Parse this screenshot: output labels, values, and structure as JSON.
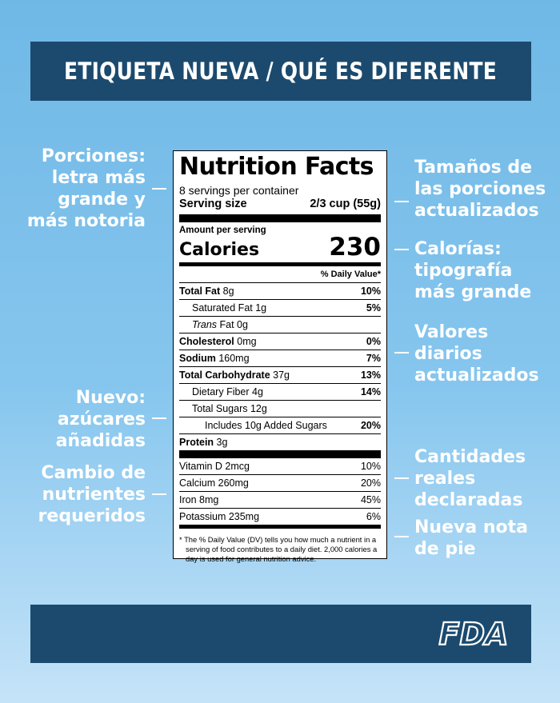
{
  "header": {
    "title": "ETIQUETA NUEVA / QUÉ ES DIFERENTE"
  },
  "callouts": {
    "left": [
      [
        "Porciones:",
        "letra más",
        "grande y",
        "más notoria"
      ],
      [
        "Nuevo:",
        "azúcares",
        "añadidas"
      ],
      [
        "Cambio de",
        "nutrientes",
        "requeridos"
      ]
    ],
    "right": [
      [
        "Tamaños de",
        "las porciones",
        "actualizados"
      ],
      [
        "Calorías:",
        "tipografía",
        "más grande"
      ],
      [
        "Valores",
        "diarios",
        "actualizados"
      ],
      [
        "Cantidades",
        "reales",
        "declaradas"
      ],
      [
        "Nueva nota",
        "de pie"
      ]
    ]
  },
  "label": {
    "title": "Nutrition Facts",
    "servings": "8 servings per container",
    "serving_size_label": "Serving size",
    "serving_size_value": "2/3 cup (55g)",
    "amount_per_serving": "Amount per serving",
    "calories_label": "Calories",
    "calories_value": "230",
    "daily_value_header": "% Daily Value*",
    "nutrients": [
      {
        "name": "Total Fat",
        "amount": "8g",
        "pct": "10%"
      },
      {
        "name": "Saturated Fat",
        "amount": "1g",
        "pct": "5%"
      },
      {
        "name": "Trans",
        "amount": "Fat 0g",
        "pct": ""
      },
      {
        "name": "Cholesterol",
        "amount": "0mg",
        "pct": "0%"
      },
      {
        "name": "Sodium",
        "amount": "160mg",
        "pct": "7%"
      },
      {
        "name": "Total Carbohydrate",
        "amount": "37g",
        "pct": "13%"
      },
      {
        "name": "Dietary Fiber",
        "amount": "4g",
        "pct": "14%"
      },
      {
        "name": "Total Sugars",
        "amount": "12g",
        "pct": ""
      },
      {
        "name": "Includes 10g Added Sugars",
        "amount": "",
        "pct": "20%"
      },
      {
        "name": "Protein",
        "amount": "3g",
        "pct": ""
      }
    ],
    "vitamins": [
      {
        "name": "Vitamin D 2mcg",
        "pct": "10%"
      },
      {
        "name": "Calcium 260mg",
        "pct": "20%"
      },
      {
        "name": "Iron 8mg",
        "pct": "45%"
      },
      {
        "name": "Potassium 235mg",
        "pct": "6%"
      }
    ],
    "footnote": "* The % Daily Value (DV) tells you how much a nutrient in a serving of food contributes to a daily diet. 2,000 calories a day is used for general nutrition advice."
  },
  "footer": {
    "logo_text": "FDA"
  },
  "colors": {
    "banner": "#1b4a6e",
    "background_top": "#6fb8e6",
    "background_bottom": "#c5e3f8"
  }
}
